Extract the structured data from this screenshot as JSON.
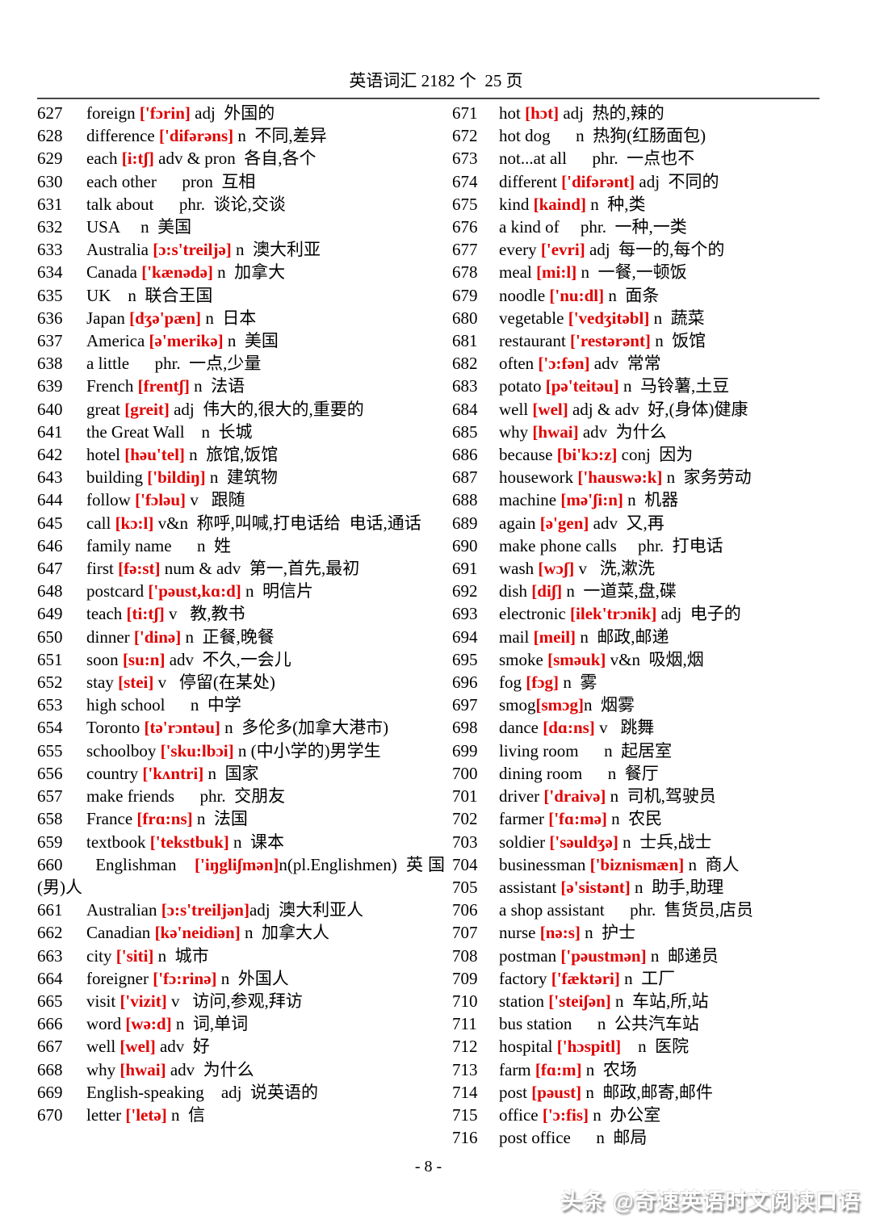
{
  "header": {
    "title": "英语词汇 2182 个  25 页"
  },
  "footer": {
    "page_number": "- 8 -"
  },
  "watermark": {
    "text": "头条 @奇速英语时文阅读口语"
  },
  "accent_color": "#e00000",
  "entries": {
    "left": [
      {
        "n": "627",
        "a": "foreign ",
        "p": "['fɔrin]",
        "b": " adj  外国的"
      },
      {
        "n": "628",
        "a": "difference ",
        "p": "['difərəns]",
        "b": " n  不同,差异"
      },
      {
        "n": "629",
        "a": "each ",
        "p": "[i:tʃ]",
        "b": " adv & pron  各自,各个"
      },
      {
        "n": "630",
        "a": "each other",
        "p": "",
        "b": "      pron  互相"
      },
      {
        "n": "631",
        "a": "talk about",
        "p": "",
        "b": "      phr.  谈论,交谈"
      },
      {
        "n": "632",
        "a": "USA",
        "p": "",
        "b": "     n  美国"
      },
      {
        "n": "633",
        "a": "Australia ",
        "p": "[ɔ:s'treiljə]",
        "b": " n  澳大利亚"
      },
      {
        "n": "634",
        "a": "Canada ",
        "p": "['kænədə]",
        "b": " n  加拿大"
      },
      {
        "n": "635",
        "a": "UK",
        "p": "",
        "b": "    n  联合王国"
      },
      {
        "n": "636",
        "a": "Japan ",
        "p": "[dʒə'pæn]",
        "b": " n  日本"
      },
      {
        "n": "637",
        "a": "America ",
        "p": "[ə'merikə]",
        "b": " n  美国"
      },
      {
        "n": "638",
        "a": "a little",
        "p": "",
        "b": "      phr.  一点,少量"
      },
      {
        "n": "639",
        "a": "French ",
        "p": "[frentʃ]",
        "b": " n  法语"
      },
      {
        "n": "640",
        "a": "great ",
        "p": "[greit]",
        "b": " adj  伟大的,很大的,重要的"
      },
      {
        "n": "641",
        "a": "the Great Wall",
        "p": "",
        "b": "    n  长城"
      },
      {
        "n": "642",
        "a": "hotel ",
        "p": "[həu'tel]",
        "b": " n  旅馆,饭馆"
      },
      {
        "n": "643",
        "a": "building ",
        "p": "['bildiŋ]",
        "b": " n  建筑物"
      },
      {
        "n": "644",
        "a": "follow ",
        "p": "['fɔləu]",
        "b": " v   跟随"
      },
      {
        "n": "645",
        "a": "call ",
        "p": "[kɔ:l]",
        "b": " v&n  称呼,叫喊,打电话给  电话,通话"
      },
      {
        "n": "646",
        "a": "family name",
        "p": "",
        "b": "      n  姓"
      },
      {
        "n": "647",
        "a": "first ",
        "p": "[fə:st]",
        "b": " num & adv  第一,首先,最初"
      },
      {
        "n": "648",
        "a": "postcard ",
        "p": "['pəust,kɑ:d]",
        "b": " n  明信片"
      },
      {
        "n": "649",
        "a": "teach ",
        "p": "[ti:tʃ]",
        "b": " v   教,教书"
      },
      {
        "n": "650",
        "a": "dinner ",
        "p": "['dinə]",
        "b": " n  正餐,晚餐"
      },
      {
        "n": "651",
        "a": "soon ",
        "p": "[su:n]",
        "b": " adv  不久,一会儿"
      },
      {
        "n": "652",
        "a": "stay ",
        "p": "[stei]",
        "b": " v   停留(在某处)"
      },
      {
        "n": "653",
        "a": "high school",
        "p": "",
        "b": "      n  中学"
      },
      {
        "n": "654",
        "a": "Toronto ",
        "p": "[tə'rɔntəu]",
        "b": " n  多伦多(加拿大港市)"
      },
      {
        "n": "655",
        "a": "schoolboy ",
        "p": "['sku:lbɔi]",
        "b": " n (中小学的)男学生"
      },
      {
        "n": "656",
        "a": "country ",
        "p": "['kʌntri]",
        "b": " n  国家"
      },
      {
        "n": "657",
        "a": "make friends",
        "p": "",
        "b": "      phr.  交朋友"
      },
      {
        "n": "658",
        "a": "France ",
        "p": "[frɑ:ns]",
        "b": " n  法国"
      },
      {
        "n": "659",
        "a": "textbook ",
        "p": "['tekstbuk]",
        "b": " n  课本"
      },
      {
        "n": "660",
        "a": " Englishman  ",
        "p": "['iŋgliʃmən]",
        "b": "n(pl.Englishmen) 英国(男)人"
      },
      {
        "n": "661",
        "a": "Australian ",
        "p": "[ɔ:s'treiljən]",
        "b": "adj  澳大利亚人"
      },
      {
        "n": "662",
        "a": "Canadian ",
        "p": "[kə'neidiən]",
        "b": " n  加拿大人"
      },
      {
        "n": "663",
        "a": "city ",
        "p": "['siti]",
        "b": " n  城市"
      },
      {
        "n": "664",
        "a": "foreigner ",
        "p": "['fɔ:rinə]",
        "b": " n  外国人"
      },
      {
        "n": "665",
        "a": "visit ",
        "p": "['vizit]",
        "b": " v   访问,参观,拜访"
      },
      {
        "n": "666",
        "a": "word ",
        "p": "[wə:d]",
        "b": " n  词,单词"
      },
      {
        "n": "667",
        "a": "well ",
        "p": "[wel]",
        "b": " adv  好"
      },
      {
        "n": "668",
        "a": "why ",
        "p": "[hwai]",
        "b": " adv  为什么"
      },
      {
        "n": "669",
        "a": "English-speaking",
        "p": "",
        "b": "    adj  说英语的"
      },
      {
        "n": "670",
        "a": "letter ",
        "p": "['letə]",
        "b": " n  信"
      }
    ],
    "right": [
      {
        "n": "671",
        "a": "hot ",
        "p": "[hɔt]",
        "b": " adj  热的,辣的"
      },
      {
        "n": "672",
        "a": "hot dog",
        "p": "",
        "b": "      n  热狗(红肠面包)"
      },
      {
        "n": "673",
        "a": "not...at all",
        "p": "",
        "b": "      phr.  一点也不"
      },
      {
        "n": "674",
        "a": "different ",
        "p": "['difərənt]",
        "b": " adj  不同的"
      },
      {
        "n": "675",
        "a": "kind ",
        "p": "[kaind]",
        "b": " n  种,类"
      },
      {
        "n": "676",
        "a": "a kind of",
        "p": "",
        "b": "     phr.  一种,一类"
      },
      {
        "n": "677",
        "a": "every ",
        "p": "['evri]",
        "b": " adj  每一的,每个的"
      },
      {
        "n": "678",
        "a": "meal ",
        "p": "[mi:l]",
        "b": " n  一餐,一顿饭"
      },
      {
        "n": "679",
        "a": "noodle ",
        "p": "['nu:dl]",
        "b": " n  面条"
      },
      {
        "n": "680",
        "a": "vegetable ",
        "p": "['vedʒitəbl]",
        "b": " n  蔬菜"
      },
      {
        "n": "681",
        "a": "restaurant ",
        "p": "['restərənt]",
        "b": " n  饭馆"
      },
      {
        "n": "682",
        "a": "often ",
        "p": "['ɔ:fən]",
        "b": " adv  常常"
      },
      {
        "n": "683",
        "a": "potato ",
        "p": "[pə'teitəu]",
        "b": " n  马铃薯,土豆"
      },
      {
        "n": "684",
        "a": "well ",
        "p": "[wel]",
        "b": " adj & adv  好,(身体)健康"
      },
      {
        "n": "685",
        "a": "why ",
        "p": "[hwai]",
        "b": " adv  为什么"
      },
      {
        "n": "686",
        "a": "because ",
        "p": "[bi'kɔ:z]",
        "b": " conj  因为"
      },
      {
        "n": "687",
        "a": "housework ",
        "p": "['hauswə:k]",
        "b": " n  家务劳动"
      },
      {
        "n": "688",
        "a": "machine ",
        "p": "[mə'ʃi:n]",
        "b": " n  机器"
      },
      {
        "n": "689",
        "a": "again ",
        "p": "[ə'gen]",
        "b": " adv  又,再"
      },
      {
        "n": "690",
        "a": "make phone calls",
        "p": "",
        "b": "     phr.  打电话"
      },
      {
        "n": "691",
        "a": "wash ",
        "p": "[wɔʃ]",
        "b": " v   洗,漱洗"
      },
      {
        "n": "692",
        "a": "dish ",
        "p": "[diʃ]",
        "b": " n  一道菜,盘,碟"
      },
      {
        "n": "693",
        "a": "electronic ",
        "p": "[ilek'trɔnik]",
        "b": " adj  电子的"
      },
      {
        "n": "694",
        "a": "mail ",
        "p": "[meil]",
        "b": " n  邮政,邮递"
      },
      {
        "n": "695",
        "a": "smoke ",
        "p": "[sməuk]",
        "b": " v&n  吸烟,烟"
      },
      {
        "n": "696",
        "a": "fog ",
        "p": "[fɔg]",
        "b": " n  雾"
      },
      {
        "n": "697",
        "a": "smog",
        "p": "[smɔg]",
        "b": "n  烟雾"
      },
      {
        "n": "698",
        "a": "dance ",
        "p": "[dɑ:ns]",
        "b": " v   跳舞"
      },
      {
        "n": "699",
        "a": "living room",
        "p": "",
        "b": "      n  起居室"
      },
      {
        "n": "700",
        "a": "dining room",
        "p": "",
        "b": "      n  餐厅"
      },
      {
        "n": "701",
        "a": "driver ",
        "p": "['draivə]",
        "b": " n  司机,驾驶员"
      },
      {
        "n": "702",
        "a": "farmer ",
        "p": "['fɑ:mə]",
        "b": " n  农民"
      },
      {
        "n": "703",
        "a": "soldier ",
        "p": "['səuldʒə]",
        "b": " n  士兵,战士"
      },
      {
        "n": "704",
        "a": "businessman ",
        "p": "['biznismæn]",
        "b": " n  商人"
      },
      {
        "n": "705",
        "a": "assistant ",
        "p": "[ə'sistənt]",
        "b": " n  助手,助理"
      },
      {
        "n": "706",
        "a": "a shop assistant",
        "p": "",
        "b": "      phr.  售货员,店员"
      },
      {
        "n": "707",
        "a": "nurse ",
        "p": "[nə:s]",
        "b": " n  护士"
      },
      {
        "n": "708",
        "a": "postman ",
        "p": "['pəustmən]",
        "b": " n  邮递员"
      },
      {
        "n": "709",
        "a": "factory ",
        "p": "['fæktəri]",
        "b": " n  工厂"
      },
      {
        "n": "710",
        "a": "station ",
        "p": "['steiʃən]",
        "b": " n  车站,所,站"
      },
      {
        "n": "711",
        "a": "bus station",
        "p": "",
        "b": "      n  公共汽车站"
      },
      {
        "n": "712",
        "a": "hospital ",
        "p": "['hɔspitl]",
        "b": "    n  医院"
      },
      {
        "n": "713",
        "a": "farm ",
        "p": "[fɑ:m]",
        "b": " n  农场"
      },
      {
        "n": "714",
        "a": "post ",
        "p": "[pəust]",
        "b": " n  邮政,邮寄,邮件"
      },
      {
        "n": "715",
        "a": "office ",
        "p": "['ɔ:fis]",
        "b": " n  办公室"
      },
      {
        "n": "716",
        "a": "post office",
        "p": "",
        "b": "      n  邮局"
      }
    ]
  }
}
